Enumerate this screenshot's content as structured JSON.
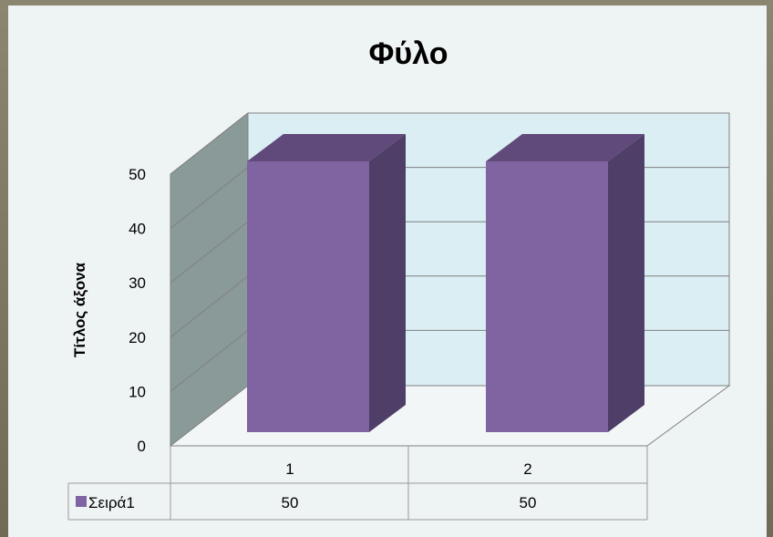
{
  "chart_data": {
    "type": "bar",
    "title": "Φύλο",
    "ylabel": "Τίτλος άξονα",
    "xlabel": "",
    "categories": [
      "1",
      "2"
    ],
    "series": [
      {
        "name": "Σειρά1",
        "values": [
          50,
          50
        ]
      }
    ],
    "ylim": [
      0,
      50
    ],
    "yticks": [
      "0",
      "10",
      "20",
      "30",
      "40",
      "50"
    ],
    "data_table": true,
    "legend_placement": "data-table",
    "grid": true,
    "colors": {
      "bar_front": "#8064a2",
      "bar_top": "#604a7b",
      "bar_side": "#4f3e67",
      "back_wall": "#daeef3",
      "side_wall": "#8a9a98",
      "floor": "#f2f6f7",
      "gridline": "#808080"
    }
  }
}
